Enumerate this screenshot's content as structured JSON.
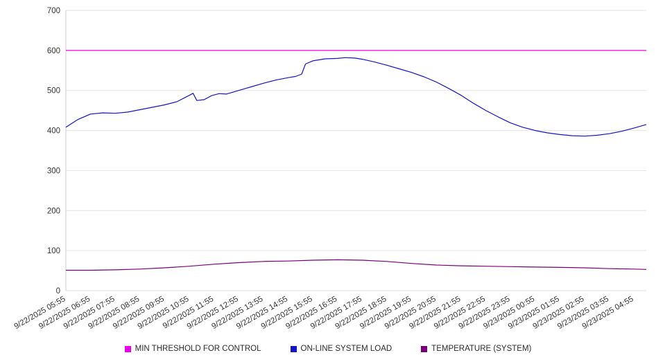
{
  "chart_data": {
    "type": "line",
    "title": "",
    "xlabel": "",
    "ylabel": "",
    "ylim": [
      0,
      700
    ],
    "yticks": [
      0,
      100,
      200,
      300,
      400,
      500,
      600,
      700
    ],
    "grid": "horizontal",
    "legend_position": "bottom",
    "x_range": [
      0,
      23.5
    ],
    "x_tick_labels": [
      "9/22/2025 05:55",
      "9/22/2025 06:55",
      "9/22/2025 07:55",
      "9/22/2025 08:55",
      "9/22/2025 09:55",
      "9/22/2025 10:55",
      "9/22/2025 11:55",
      "9/22/2025 12:55",
      "9/22/2025 13:55",
      "9/22/2025 14:55",
      "9/22/2025 15:55",
      "9/22/2025 16:55",
      "9/22/2025 17:55",
      "9/22/2025 18:55",
      "9/22/2025 19:55",
      "9/22/2025 20:55",
      "9/22/2025 21:55",
      "9/22/2025 22:55",
      "9/22/2025 23:55",
      "9/23/2025 00:55",
      "9/23/2025 01:55",
      "9/23/2025 02:55",
      "9/23/2025 03:55",
      "9/23/2025 04:55"
    ],
    "series": [
      {
        "name": "MIN THRESHOLD FOR CONTROL",
        "color": "#e800e8",
        "x": [
          0,
          23.5
        ],
        "y": [
          600,
          600
        ]
      },
      {
        "name": "ON-LINE SYSTEM LOAD",
        "color": "#1414c8",
        "x": [
          0,
          0.5,
          1,
          1.5,
          2,
          2.5,
          3,
          3.5,
          4,
          4.5,
          5,
          5.15,
          5.3,
          5.6,
          5.9,
          6.2,
          6.5,
          7,
          7.5,
          8,
          8.5,
          9,
          9.3,
          9.55,
          9.7,
          10,
          10.5,
          11,
          11.3,
          11.7,
          12,
          12.5,
          13,
          13.5,
          14,
          14.5,
          15,
          15.5,
          16,
          16.5,
          17,
          17.5,
          18,
          18.5,
          19,
          19.5,
          20,
          20.5,
          21,
          21.5,
          22,
          22.5,
          23,
          23.5
        ],
        "y": [
          408,
          428,
          441,
          444,
          443,
          446,
          452,
          458,
          464,
          472,
          488,
          493,
          475,
          477,
          487,
          492,
          491,
          500,
          509,
          518,
          526,
          532,
          535,
          541,
          566,
          574,
          579,
          580,
          582,
          581,
          578,
          571,
          563,
          554,
          545,
          534,
          521,
          505,
          488,
          468,
          450,
          434,
          419,
          408,
          400,
          394,
          390,
          387,
          386,
          388,
          392,
          398,
          406,
          415
        ]
      },
      {
        "name": "TEMPERATURE (SYSTEM)",
        "color": "#780078",
        "x": [
          0,
          1,
          2,
          3,
          4,
          5,
          6,
          7,
          8,
          9,
          10,
          11,
          12,
          13,
          14,
          15,
          16,
          17,
          18,
          19,
          20,
          21,
          22,
          23,
          23.5
        ],
        "y": [
          51,
          51,
          52,
          54,
          57,
          61,
          66,
          70,
          73,
          74,
          76,
          77,
          76,
          73,
          68,
          64,
          62,
          61,
          60,
          59,
          58,
          57,
          55,
          54,
          53
        ]
      }
    ],
    "axis_color": "#cccccc",
    "grid_color": "#e2e2e2",
    "tick_label_color": "#333333"
  }
}
